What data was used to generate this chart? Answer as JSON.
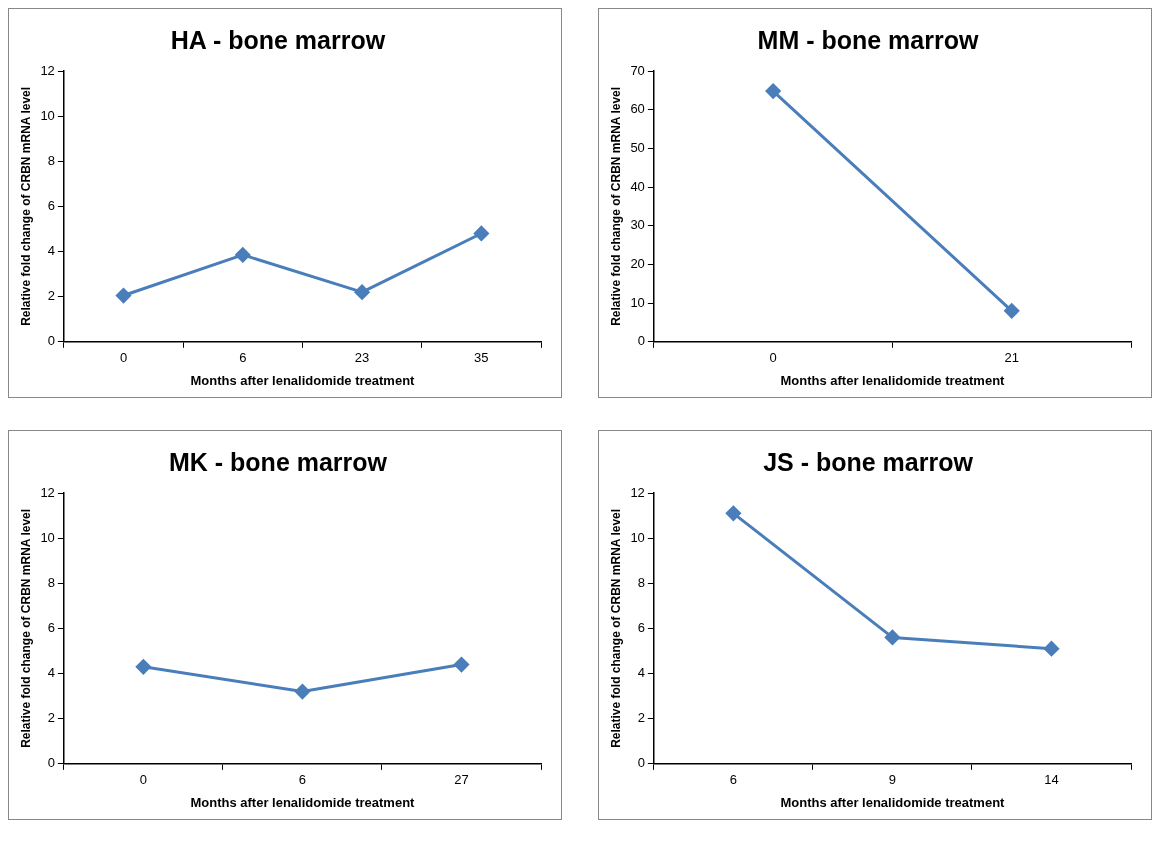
{
  "chart_data": [
    {
      "type": "line",
      "title": "HA - bone marrow",
      "xlabel": "Months after lenalidomide treatment",
      "ylabel": "Relative fold change of CRBN mRNA level",
      "categories": [
        "0",
        "6",
        "23",
        "35"
      ],
      "values": [
        2.05,
        3.85,
        2.2,
        4.8
      ],
      "color": "#4a7ebb",
      "ylim": [
        0,
        12
      ],
      "yticks": [
        0,
        2,
        4,
        6,
        8,
        10,
        12
      ],
      "marker": "diamond",
      "line_style": "solid"
    },
    {
      "type": "line",
      "title": "MM - bone marrow",
      "xlabel": "Months after lenalidomide treatment",
      "ylabel": "Relative fold change of CRBN mRNA level",
      "categories": [
        "0",
        "21"
      ],
      "values": [
        64.8,
        8
      ],
      "color": "#4a7ebb",
      "ylim": [
        0,
        70
      ],
      "yticks": [
        0,
        10,
        20,
        30,
        40,
        50,
        60,
        70
      ],
      "marker": "diamond",
      "line_style": "solid"
    },
    {
      "type": "line",
      "title": "MK - bone marrow",
      "xlabel": "Months after lenalidomide treatment",
      "ylabel": "Relative fold change of CRBN mRNA level",
      "categories": [
        "0",
        "6",
        "27"
      ],
      "values": [
        4.3,
        3.2,
        4.4
      ],
      "color": "#4a7ebb",
      "ylim": [
        0,
        12
      ],
      "yticks": [
        0,
        2,
        4,
        6,
        8,
        10,
        12
      ],
      "marker": "diamond",
      "line_style": "solid"
    },
    {
      "type": "line",
      "title": "JS - bone marrow",
      "xlabel": "Months after lenalidomide treatment",
      "ylabel": "Relative fold change of CRBN mRNA level",
      "categories": [
        "6",
        "9",
        "14"
      ],
      "values": [
        11.1,
        5.6,
        5.1
      ],
      "color": "#4a7ebb",
      "ylim": [
        0,
        12
      ],
      "yticks": [
        0,
        2,
        4,
        6,
        8,
        10,
        12
      ],
      "marker": "diamond",
      "line_style": "solid"
    }
  ]
}
